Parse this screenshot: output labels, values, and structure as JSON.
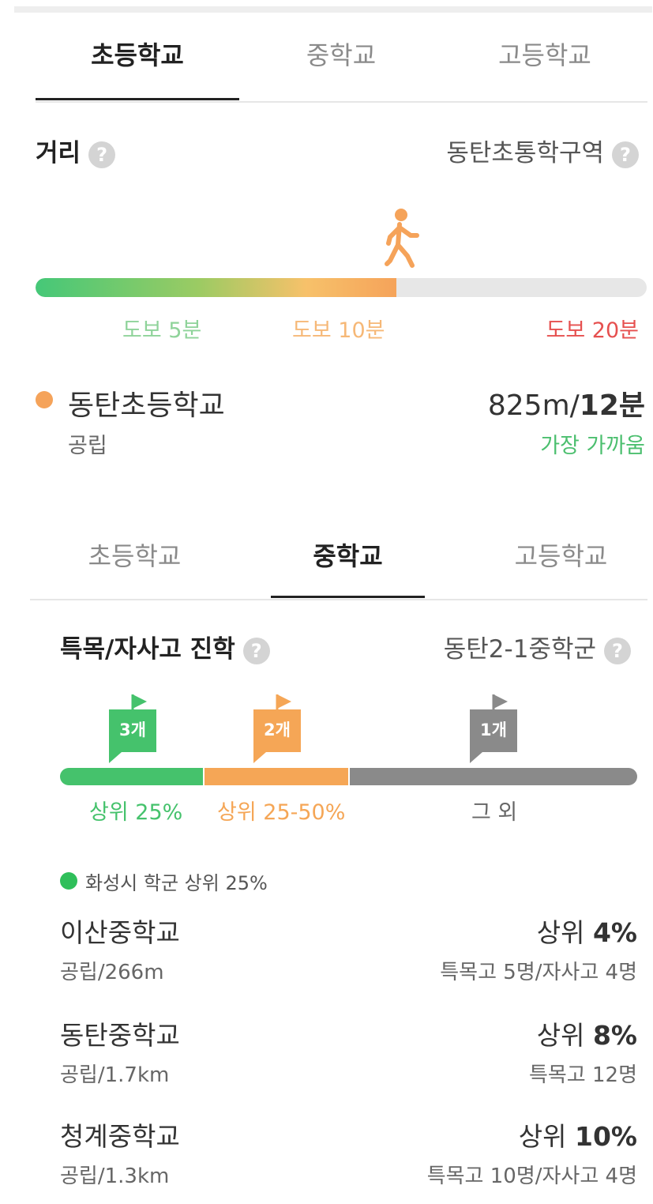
{
  "tabs_top": [
    "초등학교",
    "중학교",
    "고등학교"
  ],
  "distance": {
    "title": "거리",
    "help": "?",
    "zone": "동탄초통학구역",
    "progress_percent": 59,
    "labels": {
      "walk5": "도보 5분",
      "walk10": "도보 10분",
      "walk20": "도보 20분"
    },
    "colors": {
      "green": "#45c878",
      "orange": "#f5a35a",
      "red": "#e6504f"
    }
  },
  "elementary": {
    "name": "동탄초등학교",
    "type": "공립",
    "distance": "825m/",
    "time": "12분",
    "note": "가장 가까움"
  },
  "tabs_mid": [
    "초등학교",
    "중학교",
    "고등학교"
  ],
  "admission": {
    "title": "특목/자사고 진학",
    "zone": "동탄2-1중학군",
    "flags": [
      {
        "label": "3개",
        "color": "#45c26c",
        "icon": "flag-icon"
      },
      {
        "label": "2개",
        "color": "#f5a656",
        "icon": "flag-icon"
      },
      {
        "label": "1개",
        "color": "#8a8a8a",
        "icon": "flag-icon"
      }
    ],
    "segments": [
      {
        "label": "상위 25%",
        "color": "#45c26c"
      },
      {
        "label": "상위 25-50%",
        "color": "#f5a656"
      },
      {
        "label": "그 외",
        "color": "#8a8a8a"
      }
    ],
    "legend": "화성시 학군 상위 25%",
    "schools": [
      {
        "name": "이산중학교",
        "sub": "공립/266m",
        "rank_prefix": "상위 ",
        "rank": "4%",
        "detail": "특목고 5명/자사고 4명"
      },
      {
        "name": "동탄중학교",
        "sub": "공립/1.7km",
        "rank_prefix": "상위 ",
        "rank": "8%",
        "detail": "특목고 12명"
      },
      {
        "name": "청계중학교",
        "sub": "공립/1.3km",
        "rank_prefix": "상위 ",
        "rank": "10%",
        "detail": "특목고 10명/자사고 4명"
      }
    ]
  }
}
